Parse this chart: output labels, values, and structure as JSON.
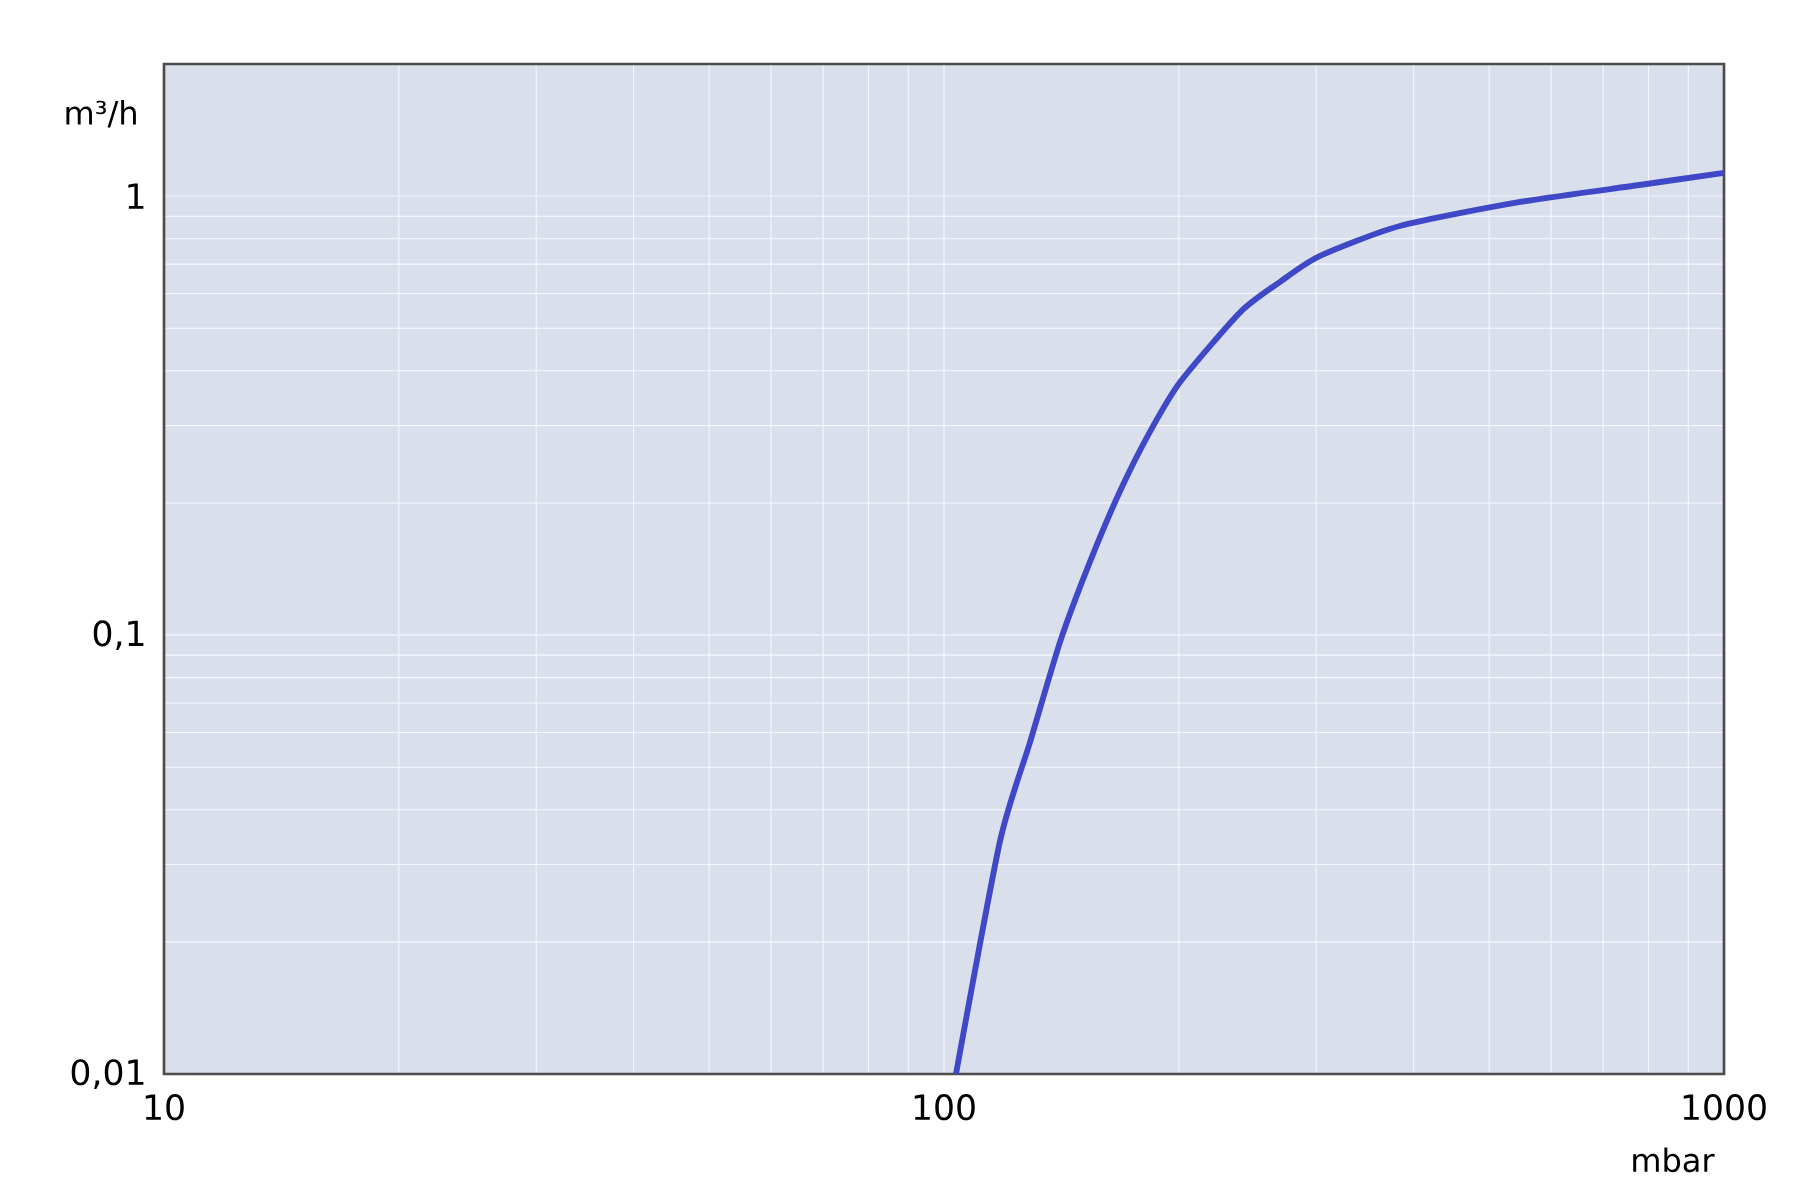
{
  "chart_data": {
    "type": "line",
    "xlabel": "mbar",
    "ylabel": "m³/h",
    "log": "xy",
    "grid": true,
    "marker": "none",
    "line_style": "solid",
    "xlim": [
      10,
      1000
    ],
    "ylim": [
      0.01,
      2
    ],
    "xticks": [
      10,
      100,
      1000
    ],
    "yticks": [
      {
        "value": 0.01,
        "label": "0,01"
      },
      {
        "value": 0.1,
        "label": "0,1"
      },
      {
        "value": 1,
        "label": "1"
      }
    ],
    "x": [
      103.6,
      118,
      128.9,
      141,
      153.9,
      168,
      183.8,
      201,
      240,
      269.7,
      303,
      384,
      548,
      779,
      1000
    ],
    "series": [
      {
        "color": "#3f48c6",
        "values": [
          0.01,
          0.034,
          0.057,
          0.097,
          0.147,
          0.212,
          0.291,
          0.378,
          0.545,
          0.638,
          0.73,
          0.855,
          0.97,
          1.06,
          1.13
        ]
      }
    ]
  }
}
